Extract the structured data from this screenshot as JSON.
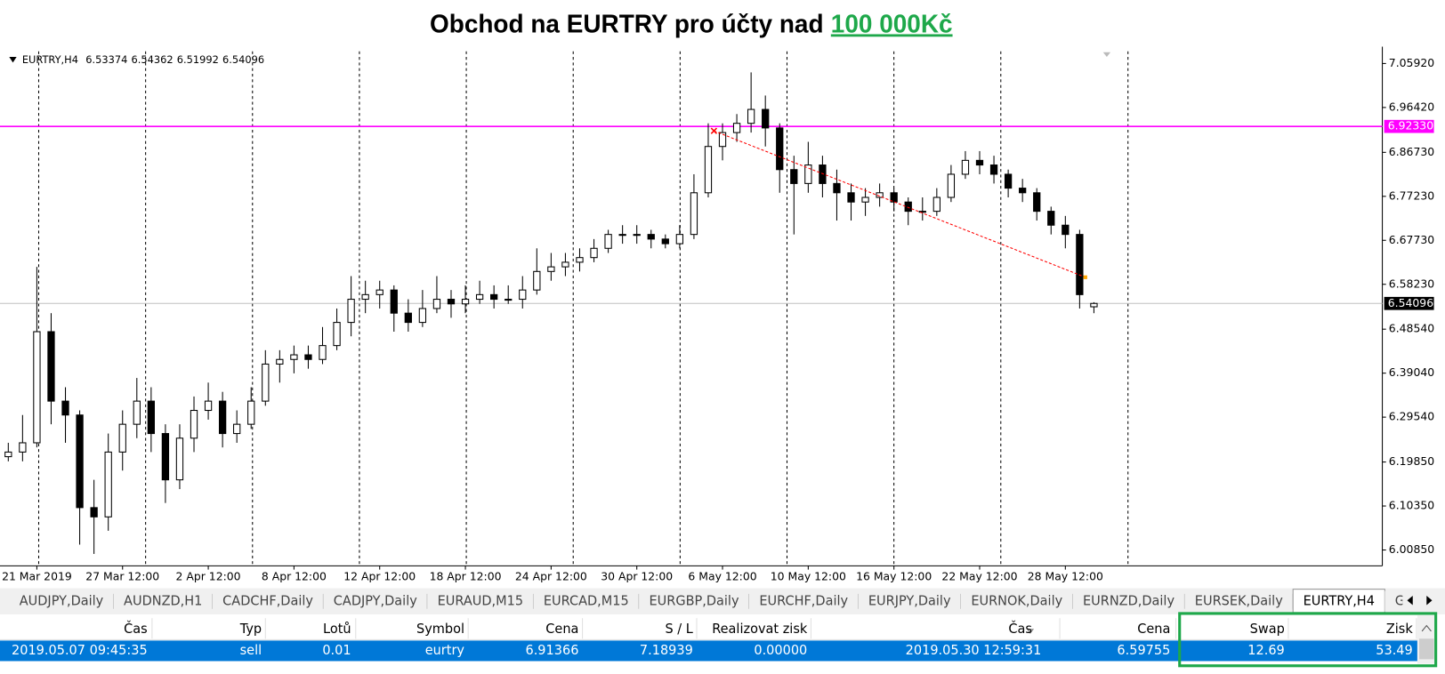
{
  "title": {
    "text": "Obchod na EURTRY pro účty nad",
    "highlight": "100 000Kč"
  },
  "chart_data": {
    "type": "candlestick",
    "symbol": "EURTRY,H4",
    "candles": [
      [
        6.21,
        6.24,
        6.2,
        6.22
      ],
      [
        6.22,
        6.3,
        6.2,
        6.24
      ],
      [
        6.24,
        6.62,
        6.23,
        6.48
      ],
      [
        6.48,
        6.52,
        6.28,
        6.33
      ],
      [
        6.33,
        6.36,
        6.24,
        6.3
      ],
      [
        6.3,
        6.31,
        6.02,
        6.1
      ],
      [
        6.1,
        6.16,
        6.0,
        6.08
      ],
      [
        6.08,
        6.26,
        6.05,
        6.22
      ],
      [
        6.22,
        6.31,
        6.18,
        6.28
      ],
      [
        6.28,
        6.38,
        6.25,
        6.33
      ],
      [
        6.33,
        6.36,
        6.22,
        6.26
      ],
      [
        6.26,
        6.28,
        6.11,
        6.16
      ],
      [
        6.16,
        6.28,
        6.14,
        6.25
      ],
      [
        6.25,
        6.34,
        6.22,
        6.31
      ],
      [
        6.31,
        6.37,
        6.29,
        6.33
      ],
      [
        6.33,
        6.35,
        6.23,
        6.26
      ],
      [
        6.26,
        6.31,
        6.24,
        6.28
      ],
      [
        6.28,
        6.36,
        6.27,
        6.33
      ],
      [
        6.33,
        6.44,
        6.32,
        6.41
      ],
      [
        6.41,
        6.44,
        6.37,
        6.42
      ],
      [
        6.42,
        6.45,
        6.39,
        6.43
      ],
      [
        6.43,
        6.45,
        6.4,
        6.42
      ],
      [
        6.42,
        6.49,
        6.41,
        6.45
      ],
      [
        6.45,
        6.53,
        6.44,
        6.5
      ],
      [
        6.5,
        6.6,
        6.47,
        6.55
      ],
      [
        6.55,
        6.59,
        6.52,
        6.56
      ],
      [
        6.56,
        6.59,
        6.53,
        6.57
      ],
      [
        6.57,
        6.58,
        6.48,
        6.52
      ],
      [
        6.52,
        6.55,
        6.48,
        6.5
      ],
      [
        6.5,
        6.57,
        6.49,
        6.53
      ],
      [
        6.53,
        6.6,
        6.52,
        6.55
      ],
      [
        6.55,
        6.57,
        6.51,
        6.54
      ],
      [
        6.54,
        6.58,
        6.52,
        6.55
      ],
      [
        6.55,
        6.59,
        6.54,
        6.56
      ],
      [
        6.56,
        6.58,
        6.53,
        6.55
      ],
      [
        6.55,
        6.58,
        6.54,
        6.55
      ],
      [
        6.55,
        6.6,
        6.53,
        6.57
      ],
      [
        6.57,
        6.66,
        6.56,
        6.61
      ],
      [
        6.61,
        6.65,
        6.59,
        6.62
      ],
      [
        6.62,
        6.65,
        6.6,
        6.63
      ],
      [
        6.63,
        6.66,
        6.61,
        6.64
      ],
      [
        6.64,
        6.68,
        6.63,
        6.66
      ],
      [
        6.66,
        6.7,
        6.65,
        6.69
      ],
      [
        6.69,
        6.71,
        6.67,
        6.69
      ],
      [
        6.69,
        6.71,
        6.67,
        6.69
      ],
      [
        6.69,
        6.7,
        6.66,
        6.68
      ],
      [
        6.68,
        6.69,
        6.66,
        6.67
      ],
      [
        6.67,
        6.71,
        6.66,
        6.69
      ],
      [
        6.69,
        6.82,
        6.68,
        6.78
      ],
      [
        6.78,
        6.93,
        6.77,
        6.88
      ],
      [
        6.88,
        6.93,
        6.85,
        6.91
      ],
      [
        6.91,
        6.95,
        6.89,
        6.93
      ],
      [
        6.93,
        7.04,
        6.91,
        6.96
      ],
      [
        6.96,
        6.99,
        6.88,
        6.92
      ],
      [
        6.92,
        6.93,
        6.78,
        6.83
      ],
      [
        6.83,
        6.86,
        6.69,
        6.8
      ],
      [
        6.8,
        6.89,
        6.78,
        6.84
      ],
      [
        6.84,
        6.86,
        6.77,
        6.8
      ],
      [
        6.8,
        6.83,
        6.72,
        6.78
      ],
      [
        6.78,
        6.8,
        6.72,
        6.76
      ],
      [
        6.76,
        6.79,
        6.73,
        6.77
      ],
      [
        6.77,
        6.8,
        6.75,
        6.78
      ],
      [
        6.78,
        6.79,
        6.74,
        6.76
      ],
      [
        6.76,
        6.77,
        6.71,
        6.74
      ],
      [
        6.74,
        6.77,
        6.72,
        6.74
      ],
      [
        6.74,
        6.79,
        6.73,
        6.77
      ],
      [
        6.77,
        6.84,
        6.76,
        6.82
      ],
      [
        6.82,
        6.87,
        6.81,
        6.85
      ],
      [
        6.85,
        6.87,
        6.82,
        6.84
      ],
      [
        6.84,
        6.86,
        6.8,
        6.82
      ],
      [
        6.82,
        6.83,
        6.77,
        6.79
      ],
      [
        6.79,
        6.81,
        6.76,
        6.78
      ],
      [
        6.78,
        6.79,
        6.72,
        6.74
      ],
      [
        6.74,
        6.75,
        6.69,
        6.71
      ],
      [
        6.71,
        6.73,
        6.66,
        6.69
      ],
      [
        6.69,
        6.7,
        6.53,
        6.56
      ],
      [
        6.53374,
        6.54362,
        6.51992,
        6.54096
      ]
    ],
    "ylim": [
      5.9742,
      7.0955
    ],
    "yticks": [
      {
        "value": 7.0592,
        "label": "7.05920"
      },
      {
        "value": 6.9642,
        "label": "6.96420"
      },
      {
        "value": 6.8673,
        "label": "6.86730"
      },
      {
        "value": 6.7723,
        "label": "6.77230"
      },
      {
        "value": 6.6773,
        "label": "6.67730"
      },
      {
        "value": 6.5823,
        "label": "6.58230"
      },
      {
        "value": 6.4854,
        "label": "6.48540"
      },
      {
        "value": 6.3904,
        "label": "6.39040"
      },
      {
        "value": 6.2954,
        "label": "6.29540"
      },
      {
        "value": 6.1985,
        "label": "6.19850"
      },
      {
        "value": 6.1035,
        "label": "6.10350"
      },
      {
        "value": 6.0085,
        "label": "6.00850"
      }
    ],
    "xlim": [
      -0.58,
      96.19
    ],
    "xticks": [
      {
        "value": 2,
        "label": "21 Mar 2019"
      },
      {
        "value": 8,
        "label": "27 Mar 12:00"
      },
      {
        "value": 14,
        "label": "2 Apr 12:00"
      },
      {
        "value": 20,
        "label": "8 Apr 12:00"
      },
      {
        "value": 26,
        "label": "12 Apr 12:00"
      },
      {
        "value": 32,
        "label": "18 Apr 12:00"
      },
      {
        "value": 38,
        "label": "24 Apr 12:00"
      },
      {
        "value": 44,
        "label": "30 Apr 12:00"
      },
      {
        "value": 50,
        "label": "6 May 12:00"
      },
      {
        "value": 56,
        "label": "10 May 12:00"
      },
      {
        "value": 62,
        "label": "16 May 12:00"
      },
      {
        "value": 68,
        "label": "22 May 12:00"
      },
      {
        "value": 74,
        "label": "28 May 12:00"
      }
    ],
    "level": {
      "value": 6.9233,
      "label": "6.92330",
      "color": "#ff00ff"
    }
  },
  "tabs": [
    "AUDJPY,Daily",
    "AUDNZD,H1",
    "CADCHF,Daily",
    "CADJPY,Daily",
    "EURAUD,M15",
    "EURCAD,M15",
    "EURGBP,Daily",
    "EURCHF,Daily",
    "EURJPY,Daily",
    "EURNOK,Daily",
    "EURNZD,Daily",
    "EURSEK,Daily",
    "EURTRY,H4",
    "GBPA"
  ],
  "active_tab": 12,
  "table": {
    "columns": [
      "Čas",
      "Typ",
      "Lotů",
      "Symbol",
      "Cena",
      "S / L",
      "Realizovat zisk",
      "Čas",
      "Cena",
      "Swap",
      "Zisk"
    ],
    "row": [
      "2019.05.07 09:45:35",
      "sell",
      0.01,
      "eurtry",
      6.91366,
      7.18939,
      "0.00000",
      "2019.05.30 12:59:31",
      6.59755,
      12.69,
      53.49
    ]
  }
}
